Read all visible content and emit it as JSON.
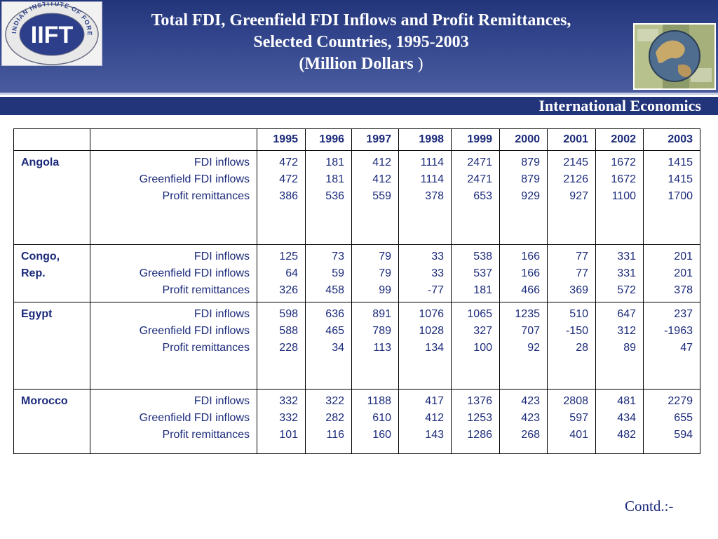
{
  "slide": {
    "title_line1": "Total FDI, Greenfield FDI Inflows and Profit Remittances,",
    "title_line2": "Selected Countries, 1995-2003",
    "title_line3": "(Million Dollars",
    "title_line3_paren": " )",
    "course": "International Economics",
    "footer": "Contd.:-"
  },
  "logo": {
    "initials": "IIFT",
    "ring_text": "INDIAN INSTITUTE OF FOREIGN TRADE"
  },
  "table": {
    "years": [
      "1995",
      "1996",
      "1997",
      "1998",
      "1999",
      "2000",
      "2001",
      "2002",
      "2003"
    ],
    "metrics": [
      "FDI inflows",
      "Greenfield FDI inflows",
      "Profit remittances"
    ],
    "rows": [
      {
        "country": "Angola",
        "values": [
          [
            "472",
            "472",
            "386"
          ],
          [
            "181",
            "181",
            "536"
          ],
          [
            "412",
            "412",
            "559"
          ],
          [
            "1114",
            "1114",
            "378"
          ],
          [
            "2471",
            "2471",
            "653"
          ],
          [
            "879",
            "879",
            "929"
          ],
          [
            "2145",
            "2126",
            "927"
          ],
          [
            "1672",
            "1672",
            "1100"
          ],
          [
            "1415",
            "1415",
            "1700"
          ]
        ]
      },
      {
        "country": "Congo, Rep.",
        "values": [
          [
            "125",
            "64",
            "326"
          ],
          [
            "73",
            "59",
            "458"
          ],
          [
            "79",
            "79",
            "99"
          ],
          [
            "33",
            "33",
            "-77"
          ],
          [
            "538",
            "537",
            "181"
          ],
          [
            "166",
            "166",
            "466"
          ],
          [
            "77",
            "77",
            "369"
          ],
          [
            "331",
            "331",
            "572"
          ],
          [
            "201",
            "201",
            "378"
          ]
        ]
      },
      {
        "country": "Egypt",
        "values": [
          [
            "598",
            "588",
            "228"
          ],
          [
            "636",
            "465",
            "34"
          ],
          [
            "891",
            "789",
            "113"
          ],
          [
            "1076",
            "1028",
            "134"
          ],
          [
            "1065",
            "327",
            "100"
          ],
          [
            "1235",
            "707",
            "92"
          ],
          [
            "510",
            "-150",
            "28"
          ],
          [
            "647",
            "312",
            "89"
          ],
          [
            "237",
            "-1963",
            "47"
          ]
        ]
      },
      {
        "country": "Morocco",
        "values": [
          [
            "332",
            "332",
            "101"
          ],
          [
            "322",
            "282",
            "116"
          ],
          [
            "1188",
            "610",
            "160"
          ],
          [
            "417",
            "412",
            "143"
          ],
          [
            "1376",
            "1253",
            "1286"
          ],
          [
            "423",
            "423",
            "268"
          ],
          [
            "2808",
            "597",
            "401"
          ],
          [
            "481",
            "434",
            "482"
          ],
          [
            "2279",
            "655",
            "594"
          ]
        ]
      }
    ]
  }
}
